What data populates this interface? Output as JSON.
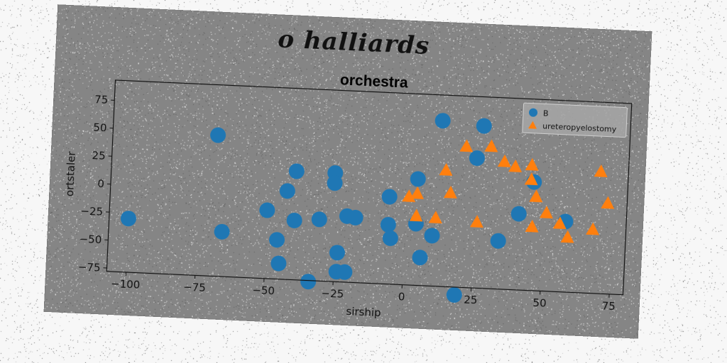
{
  "suptitle": "o halliards",
  "chart_data": {
    "type": "scatter",
    "title": "orchestra",
    "xlabel": "sirship",
    "ylabel": "ortstaler",
    "xlim": [
      -107,
      80
    ],
    "ylim": [
      -78,
      93
    ],
    "xticks": [
      -100,
      -75,
      -50,
      -25,
      0,
      25,
      50,
      75
    ],
    "yticks": [
      -75,
      -50,
      -25,
      0,
      25,
      50,
      75
    ],
    "grid": false,
    "legend_position": "top-right",
    "series": [
      {
        "name": "B",
        "marker": "circle",
        "color": "#1f77b4",
        "points": [
          [
            -100,
            -30
          ],
          [
            -69,
            48
          ],
          [
            -66,
            -38
          ],
          [
            -50,
            -17
          ],
          [
            -46,
            -43
          ],
          [
            -45,
            -64
          ],
          [
            -43,
            1
          ],
          [
            -40,
            19
          ],
          [
            -40,
            -25
          ],
          [
            -34,
            -79
          ],
          [
            -31,
            -23
          ],
          [
            -26,
            19
          ],
          [
            -26,
            10
          ],
          [
            -24,
            -52
          ],
          [
            -24,
            -69
          ],
          [
            -21,
            -69
          ],
          [
            -21,
            -19
          ],
          [
            -18,
            -20
          ],
          [
            -6,
            -25
          ],
          [
            -6,
            0
          ],
          [
            -5,
            -37
          ],
          [
            4,
            17
          ],
          [
            4,
            -23
          ],
          [
            6,
            -53
          ],
          [
            10,
            -33
          ],
          [
            12,
            70
          ],
          [
            19,
            -85
          ],
          [
            25,
            38
          ],
          [
            27,
            67
          ],
          [
            34,
            -35
          ],
          [
            41,
            -10
          ],
          [
            46,
            19
          ],
          [
            58,
            -15
          ]
        ]
      },
      {
        "name": "ureteropyelostomy",
        "marker": "triangle",
        "color": "#ff7f0e",
        "points": [
          [
            1,
            1
          ],
          [
            4,
            4
          ],
          [
            4,
            -16
          ],
          [
            11,
            -17
          ],
          [
            14,
            26
          ],
          [
            16,
            6
          ],
          [
            21,
            48
          ],
          [
            26,
            -19
          ],
          [
            30,
            49
          ],
          [
            35,
            36
          ],
          [
            39,
            32
          ],
          [
            45,
            34
          ],
          [
            45,
            21
          ],
          [
            46,
            -21
          ],
          [
            47,
            6
          ],
          [
            51,
            -8
          ],
          [
            56,
            -17
          ],
          [
            59,
            -29
          ],
          [
            68,
            -21
          ],
          [
            70,
            31
          ],
          [
            73,
            3
          ]
        ]
      }
    ]
  }
}
